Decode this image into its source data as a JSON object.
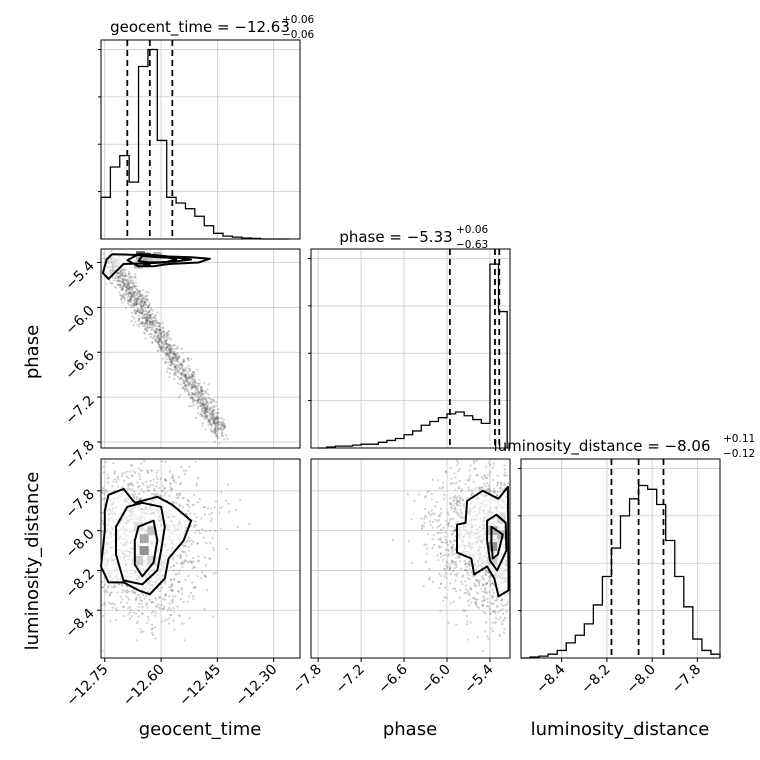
{
  "chart_data": {
    "type": "corner",
    "parameters": [
      "geocent_time",
      "phase",
      "luminosity_distance"
    ],
    "panels": {
      "geocent_time": {
        "title_main": "geocent_time = −12.63",
        "title_sup": "+0.06",
        "title_sub": "−0.06",
        "median": -12.63,
        "quantiles": [
          -12.69,
          -12.63,
          -12.57
        ],
        "xlim": [
          -12.76,
          -12.23
        ],
        "bins": [
          -12.76,
          -12.735,
          -12.71,
          -12.685,
          -12.66,
          -12.635,
          -12.61,
          -12.585,
          -12.56,
          -12.535,
          -12.51,
          -12.485,
          -12.46,
          -12.435,
          -12.41,
          -12.385,
          -12.36,
          -12.335,
          -12.31,
          -12.285,
          -12.26
        ],
        "counts": [
          0.22,
          0.38,
          0.44,
          0.3,
          0.91,
          1.0,
          0.52,
          0.22,
          0.19,
          0.16,
          0.12,
          0.07,
          0.03,
          0.015,
          0.01,
          0.005,
          0.003,
          0.0,
          0.0,
          0.0
        ]
      },
      "phase": {
        "title_main": "phase = −5.33",
        "title_sup": "+0.06",
        "title_sub": "−0.63",
        "median": -5.33,
        "quantiles": [
          -5.96,
          -5.33,
          -5.27
        ],
        "xlim": [
          -7.9,
          -5.12
        ],
        "bins": [
          -7.8,
          -7.68,
          -7.56,
          -7.44,
          -7.32,
          -7.2,
          -7.08,
          -6.96,
          -6.84,
          -6.72,
          -6.6,
          -6.48,
          -6.36,
          -6.24,
          -6.12,
          -6.0,
          -5.88,
          -5.76,
          -5.64,
          -5.52,
          -5.4,
          -5.28,
          -5.16
        ],
        "counts": [
          0.0,
          0.005,
          0.01,
          0.01,
          0.015,
          0.02,
          0.02,
          0.03,
          0.04,
          0.05,
          0.07,
          0.09,
          0.12,
          0.14,
          0.16,
          0.18,
          0.19,
          0.17,
          0.15,
          0.13,
          0.97,
          0.72
        ]
      },
      "luminosity_distance": {
        "title_main": "luminosity_distance = −8.06",
        "title_sup": "+0.11",
        "title_sub": "−0.12",
        "median": -8.06,
        "quantiles": [
          -8.18,
          -8.06,
          -7.95
        ],
        "xlim": [
          -8.58,
          -7.7
        ],
        "bins": [
          -8.58,
          -8.54,
          -8.5,
          -8.46,
          -8.42,
          -8.38,
          -8.34,
          -8.3,
          -8.26,
          -8.22,
          -8.18,
          -8.14,
          -8.1,
          -8.06,
          -8.02,
          -7.98,
          -7.94,
          -7.9,
          -7.86,
          -7.82,
          -7.78,
          -7.74,
          -7.7
        ],
        "counts": [
          0.0,
          0.005,
          0.01,
          0.02,
          0.04,
          0.08,
          0.12,
          0.18,
          0.28,
          0.43,
          0.58,
          0.75,
          0.84,
          0.91,
          0.89,
          0.81,
          0.62,
          0.43,
          0.27,
          0.1,
          0.04,
          0.02
        ]
      }
    },
    "contours": {
      "geocent_time|phase": {
        "x_param": "geocent_time",
        "y_param": "phase",
        "xlim": [
          -12.76,
          -12.23
        ],
        "ylim": [
          -7.88,
          -5.22
        ],
        "levels": [
          [
            [
              -12.73,
              -5.29
            ],
            [
              -12.66,
              -5.3
            ],
            [
              -12.6,
              -5.31
            ],
            [
              -12.56,
              -5.36
            ],
            [
              -12.59,
              -5.4
            ],
            [
              -12.64,
              -5.41
            ],
            [
              -12.7,
              -5.42
            ],
            [
              -12.72,
              -5.52
            ],
            [
              -12.74,
              -5.62
            ],
            [
              -12.755,
              -5.54
            ],
            [
              -12.745,
              -5.36
            ]
          ],
          [
            [
              -12.66,
              -5.29
            ],
            [
              -12.62,
              -5.3
            ],
            [
              -12.58,
              -5.32
            ],
            [
              -12.52,
              -5.33
            ],
            [
              -12.47,
              -5.35
            ],
            [
              -12.5,
              -5.4
            ],
            [
              -12.58,
              -5.42
            ],
            [
              -12.62,
              -5.45
            ],
            [
              -12.66,
              -5.45
            ],
            [
              -12.69,
              -5.37
            ]
          ],
          [
            [
              -12.65,
              -5.31
            ],
            [
              -12.61,
              -5.33
            ],
            [
              -12.55,
              -5.34
            ],
            [
              -12.52,
              -5.36
            ],
            [
              -12.57,
              -5.39
            ],
            [
              -12.63,
              -5.4
            ],
            [
              -12.66,
              -5.38
            ]
          ]
        ],
        "hist2d": [
          {
            "x": -12.64,
            "y": -5.38,
            "w": 1.0
          },
          {
            "x": -12.64,
            "y": -5.33,
            "w": 0.8
          },
          {
            "x": -12.655,
            "y": -5.31,
            "w": 0.7
          },
          {
            "x": -12.625,
            "y": -5.36,
            "w": 0.55
          },
          {
            "x": -12.66,
            "y": -5.42,
            "w": 0.35
          },
          {
            "x": -12.61,
            "y": -5.32,
            "w": 0.3
          }
        ]
      },
      "geocent_time|luminosity_distance": {
        "x_param": "geocent_time",
        "y_param": "luminosity_distance",
        "xlim": [
          -12.76,
          -12.23
        ],
        "ylim": [
          -8.64,
          -7.64
        ],
        "levels": [
          [
            [
              -12.74,
              -7.82
            ],
            [
              -12.7,
              -7.79
            ],
            [
              -12.67,
              -7.86
            ],
            [
              -12.61,
              -7.83
            ],
            [
              -12.57,
              -7.87
            ],
            [
              -12.52,
              -7.95
            ],
            [
              -12.54,
              -8.05
            ],
            [
              -12.58,
              -8.14
            ],
            [
              -12.59,
              -8.24
            ],
            [
              -12.63,
              -8.32
            ],
            [
              -12.66,
              -8.3
            ],
            [
              -12.7,
              -8.26
            ],
            [
              -12.74,
              -8.26
            ],
            [
              -12.76,
              -8.18
            ],
            [
              -12.75,
              -8.0
            ],
            [
              -12.75,
              -7.9
            ]
          ],
          [
            [
              -12.69,
              -7.88
            ],
            [
              -12.65,
              -7.86
            ],
            [
              -12.6,
              -7.88
            ],
            [
              -12.59,
              -7.98
            ],
            [
              -12.6,
              -8.1
            ],
            [
              -12.61,
              -8.2
            ],
            [
              -12.65,
              -8.27
            ],
            [
              -12.7,
              -8.25
            ],
            [
              -12.72,
              -8.12
            ],
            [
              -12.72,
              -7.98
            ]
          ],
          [
            [
              -12.66,
              -7.98
            ],
            [
              -12.62,
              -7.95
            ],
            [
              -12.61,
              -8.05
            ],
            [
              -12.62,
              -8.16
            ],
            [
              -12.65,
              -8.23
            ],
            [
              -12.67,
              -8.17
            ],
            [
              -12.67,
              -8.05
            ]
          ]
        ],
        "hist2d": [
          {
            "x": -12.645,
            "y": -8.1,
            "w": 1.0
          },
          {
            "x": -12.645,
            "y": -8.04,
            "w": 0.8
          },
          {
            "x": -12.625,
            "y": -8.0,
            "w": 0.55
          },
          {
            "x": -12.66,
            "y": -8.15,
            "w": 0.45
          },
          {
            "x": -12.625,
            "y": -8.15,
            "w": 0.35
          },
          {
            "x": -12.66,
            "y": -7.98,
            "w": 0.3
          }
        ]
      },
      "phase|luminosity_distance": {
        "x_param": "phase",
        "y_param": "luminosity_distance",
        "xlim": [
          -7.9,
          -5.12
        ],
        "ylim": [
          -8.64,
          -7.64
        ],
        "levels": [
          [
            [
              -5.72,
              -7.85
            ],
            [
              -5.5,
              -7.8
            ],
            [
              -5.28,
              -7.84
            ],
            [
              -5.15,
              -7.78
            ],
            [
              -5.14,
              -8.3
            ],
            [
              -5.28,
              -8.33
            ],
            [
              -5.34,
              -8.24
            ],
            [
              -5.44,
              -8.18
            ],
            [
              -5.62,
              -8.22
            ],
            [
              -5.66,
              -8.14
            ],
            [
              -5.86,
              -8.11
            ],
            [
              -5.86,
              -7.97
            ],
            [
              -5.74,
              -7.96
            ]
          ],
          [
            [
              -5.44,
              -7.95
            ],
            [
              -5.31,
              -7.92
            ],
            [
              -5.18,
              -7.96
            ],
            [
              -5.17,
              -8.1
            ],
            [
              -5.3,
              -8.2
            ],
            [
              -5.4,
              -8.15
            ],
            [
              -5.44,
              -8.05
            ]
          ],
          [
            [
              -5.38,
              -7.98
            ],
            [
              -5.3,
              -8.0
            ],
            [
              -5.22,
              -8.02
            ],
            [
              -5.29,
              -8.12
            ],
            [
              -5.36,
              -8.14
            ],
            [
              -5.38,
              -8.06
            ]
          ]
        ],
        "hist2d": [
          {
            "x": -5.36,
            "y": -8.08,
            "w": 1.0
          },
          {
            "x": -5.36,
            "y": -8.0,
            "w": 0.7
          },
          {
            "x": -5.24,
            "y": -8.02,
            "w": 0.6
          },
          {
            "x": -5.36,
            "y": -8.15,
            "w": 0.45
          },
          {
            "x": -5.24,
            "y": -7.94,
            "w": 0.35
          }
        ]
      }
    },
    "axis_ticks": {
      "geocent_time": [
        "−12.75",
        "−12.60",
        "−12.45",
        "−12.30"
      ],
      "phase_x": [
        "−7.8",
        "−7.2",
        "−6.6",
        "−6.0",
        "−5.4"
      ],
      "phase_y": [
        "−5.4",
        "−6.0",
        "−6.6",
        "−7.2",
        "−7.8"
      ],
      "luminosity_distance_x": [
        "−8.4",
        "−8.2",
        "−8.0",
        "−7.8"
      ],
      "luminosity_distance_y": [
        "−7.8",
        "−8.0",
        "−8.2",
        "−8.4"
      ]
    },
    "tick_values": {
      "geocent_time": [
        -12.75,
        -12.6,
        -12.45,
        -12.3
      ],
      "phase": [
        -7.8,
        -7.2,
        -6.6,
        -6.0,
        -5.4
      ],
      "luminosity_distance": [
        -8.4,
        -8.2,
        -8.0,
        -7.8
      ]
    },
    "axis_labels": {
      "x": [
        "geocent_time",
        "phase",
        "luminosity_distance"
      ],
      "y": [
        "phase",
        "luminosity_distance"
      ]
    },
    "grid": true
  }
}
